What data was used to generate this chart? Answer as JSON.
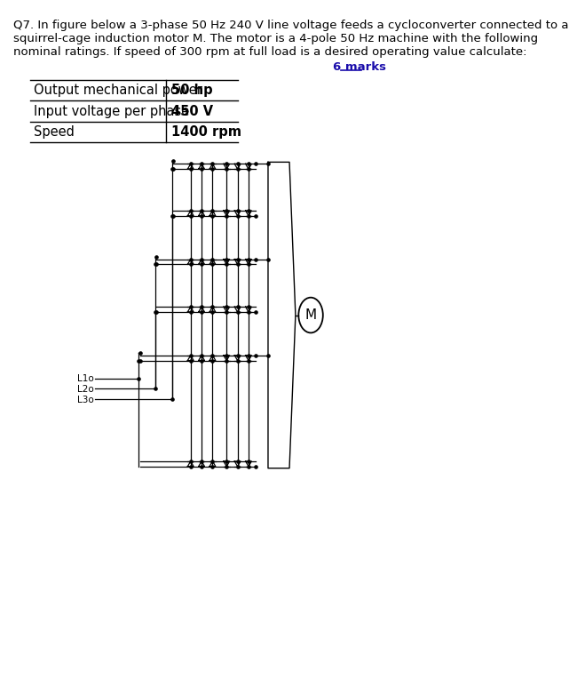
{
  "title_line1": "Q7. In figure below a 3-phase 50 Hz 240 V line voltage feeds a cycloconverter connected to a",
  "title_line2": "squirrel-cage induction motor M. The motor is a 4-pole 50 Hz machine with the following",
  "title_line3": "nominal ratings. If speed of 300 rpm at full load is a desired operating value calculate:",
  "marks_text": "6 marks",
  "table_rows": [
    [
      "Output mechanical power",
      "50 hp"
    ],
    [
      "Input voltage per phase",
      "450 V"
    ],
    [
      "Speed",
      "1400 rpm"
    ]
  ],
  "bg_color": "#ffffff",
  "text_color": "#000000",
  "marks_color": "#1a0dab",
  "font_size_title": 9.5,
  "font_size_table": 10.5,
  "font_size_table_bold": 10.5
}
